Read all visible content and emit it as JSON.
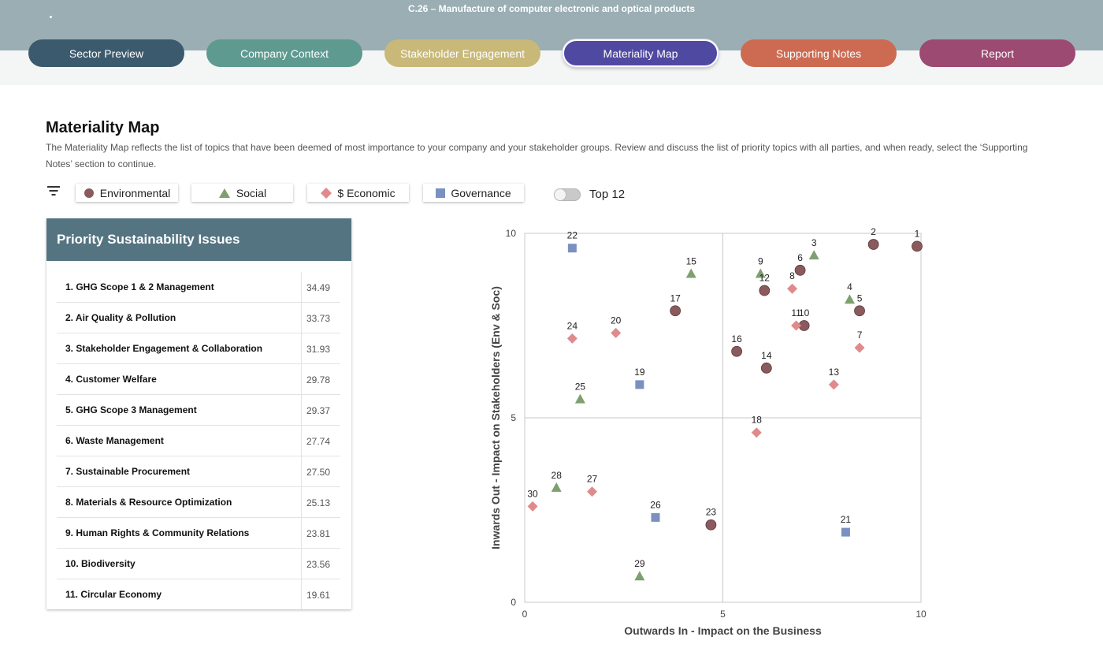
{
  "header": {
    "sector_title": "C.26 – Manufacture of computer electronic and optical products",
    "tabs": [
      {
        "label": "Sector Preview",
        "color": "#3c5a6d",
        "active": false
      },
      {
        "label": "Company Context",
        "color": "#5e9a90",
        "active": false
      },
      {
        "label": "Stakeholder Engagement",
        "color": "#c9b978",
        "active": false
      },
      {
        "label": "Materiality Map",
        "color": "#5049a2",
        "active": true
      },
      {
        "label": "Supporting Notes",
        "color": "#cc6b52",
        "active": false
      },
      {
        "label": "Report",
        "color": "#9c4a72",
        "active": false
      }
    ]
  },
  "page": {
    "title": "Materiality Map",
    "description": "The Materiality Map reflects the list of topics that have been deemed of most importance to your company and your stakeholder groups. Review and discuss the list of priority topics with all parties, and when ready, select the ‘Supporting Notes’ section to continue."
  },
  "filters": {
    "icon": "filter-icon",
    "chips": [
      {
        "label": "Environmental",
        "symbol": "circle",
        "color": "#8a5a5c"
      },
      {
        "label": "Social",
        "symbol": "triangle",
        "color": "#7ea070"
      },
      {
        "label": "$ Economic",
        "symbol": "diamond",
        "color": "#e08a8c"
      },
      {
        "label": "Governance",
        "symbol": "square",
        "color": "#7a90c0"
      }
    ],
    "toggle": {
      "label": "Top 12",
      "on": false
    }
  },
  "priority_panel": {
    "title": "Priority Sustainability Issues",
    "header_color": "#557482",
    "issues": [
      {
        "name": "1. GHG Scope 1 & 2 Management",
        "score": "34.49"
      },
      {
        "name": "2. Air Quality & Pollution",
        "score": "33.73"
      },
      {
        "name": "3. Stakeholder Engagement & Collaboration",
        "score": "31.93"
      },
      {
        "name": "4. Customer Welfare",
        "score": "29.78"
      },
      {
        "name": "5. GHG Scope 3 Management",
        "score": "29.37"
      },
      {
        "name": "6. Waste Management",
        "score": "27.74"
      },
      {
        "name": "7. Sustainable Procurement",
        "score": "27.50"
      },
      {
        "name": "8. Materials & Resource Optimization",
        "score": "25.13"
      },
      {
        "name": "9. Human Rights & Community Relations",
        "score": "23.81"
      },
      {
        "name": "10. Biodiversity",
        "score": "23.56"
      },
      {
        "name": "11. Circular Economy",
        "score": "19.61"
      }
    ]
  },
  "chart_data": {
    "type": "scatter",
    "xlabel": "Outwards In - Impact on the Business",
    "ylabel": "Inwards Out - Impact on Stakeholders (Env & Soc)",
    "xlim": [
      0,
      10
    ],
    "ylim": [
      0,
      10
    ],
    "x_ticks": [
      "0",
      "5",
      "10"
    ],
    "y_ticks": [
      "0",
      "5",
      "10"
    ],
    "quadrant_lines": {
      "x": 5,
      "y": 5
    },
    "colors": {
      "environmental": "#8a5a5c",
      "social": "#7ea070",
      "economic": "#e08a8c",
      "governance": "#7a90c0"
    },
    "points": [
      {
        "id": "1",
        "x": 9.9,
        "y": 9.65,
        "category": "environmental"
      },
      {
        "id": "2",
        "x": 8.8,
        "y": 9.7,
        "category": "environmental"
      },
      {
        "id": "3",
        "x": 7.3,
        "y": 9.4,
        "category": "social"
      },
      {
        "id": "4",
        "x": 8.2,
        "y": 8.2,
        "category": "social"
      },
      {
        "id": "5",
        "x": 8.45,
        "y": 7.9,
        "category": "environmental"
      },
      {
        "id": "6",
        "x": 6.95,
        "y": 9.0,
        "category": "environmental"
      },
      {
        "id": "7",
        "x": 8.45,
        "y": 6.9,
        "category": "economic"
      },
      {
        "id": "8",
        "x": 6.75,
        "y": 8.5,
        "category": "economic"
      },
      {
        "id": "9",
        "x": 5.95,
        "y": 8.9,
        "category": "social"
      },
      {
        "id": "10",
        "x": 7.05,
        "y": 7.5,
        "category": "environmental"
      },
      {
        "id": "11",
        "x": 6.85,
        "y": 7.5,
        "category": "economic"
      },
      {
        "id": "12",
        "x": 6.05,
        "y": 8.45,
        "category": "environmental"
      },
      {
        "id": "13",
        "x": 7.8,
        "y": 5.9,
        "category": "economic"
      },
      {
        "id": "14",
        "x": 6.1,
        "y": 6.35,
        "category": "environmental"
      },
      {
        "id": "15",
        "x": 4.2,
        "y": 8.9,
        "category": "social"
      },
      {
        "id": "16",
        "x": 5.35,
        "y": 6.8,
        "category": "environmental"
      },
      {
        "id": "17",
        "x": 3.8,
        "y": 7.9,
        "category": "environmental"
      },
      {
        "id": "18",
        "x": 5.85,
        "y": 4.6,
        "category": "economic"
      },
      {
        "id": "19",
        "x": 2.9,
        "y": 5.9,
        "category": "governance"
      },
      {
        "id": "20",
        "x": 2.3,
        "y": 7.3,
        "category": "economic"
      },
      {
        "id": "21",
        "x": 8.1,
        "y": 1.9,
        "category": "governance"
      },
      {
        "id": "22",
        "x": 1.2,
        "y": 9.6,
        "category": "governance"
      },
      {
        "id": "23",
        "x": 4.7,
        "y": 2.1,
        "category": "environmental"
      },
      {
        "id": "24",
        "x": 1.2,
        "y": 7.15,
        "category": "economic"
      },
      {
        "id": "25",
        "x": 1.4,
        "y": 5.5,
        "category": "social"
      },
      {
        "id": "26",
        "x": 3.3,
        "y": 2.3,
        "category": "governance"
      },
      {
        "id": "27",
        "x": 1.7,
        "y": 3.0,
        "category": "economic"
      },
      {
        "id": "28",
        "x": 0.8,
        "y": 3.1,
        "category": "social"
      },
      {
        "id": "29",
        "x": 2.9,
        "y": 0.7,
        "category": "social"
      },
      {
        "id": "30",
        "x": 0.2,
        "y": 2.6,
        "category": "economic"
      }
    ]
  }
}
